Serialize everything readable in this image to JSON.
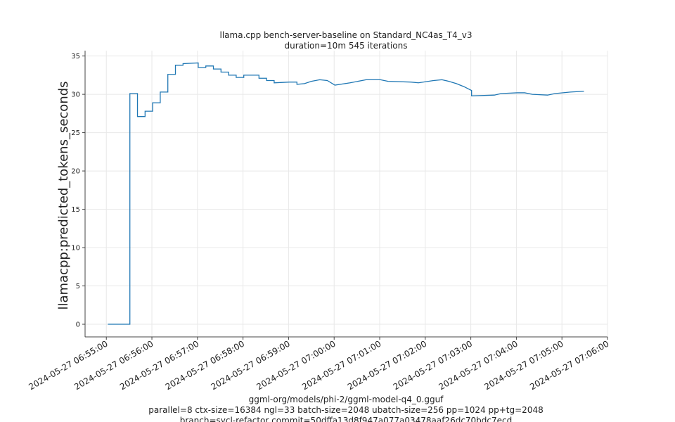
{
  "chart_data": {
    "type": "line",
    "title": "llama.cpp bench-server-baseline on Standard_NC4as_T4_v3",
    "subtitle": "duration=10m 545 iterations",
    "y_label": "llamacpp:predicted_tokens_seconds",
    "footer": [
      "ggml-org/models/phi-2/ggml-model-q4_0.gguf",
      "parallel=8 ctx-size=16384 ngl=33 batch-size=2048 ubatch-size=256 pp=1024 pp+tg=2048",
      "branch=sycl-refactor commit=50dffa13d8f947a077a03478aaf26dc70bdc7ecd"
    ],
    "grid": true,
    "xlim": [
      "2024-05-27 06:54:32",
      "2024-05-27 07:06:00"
    ],
    "xticks": [
      "2024-05-27 06:55:00",
      "2024-05-27 06:56:00",
      "2024-05-27 06:57:00",
      "2024-05-27 06:58:00",
      "2024-05-27 06:59:00",
      "2024-05-27 07:00:00",
      "2024-05-27 07:01:00",
      "2024-05-27 07:02:00",
      "2024-05-27 07:03:00",
      "2024-05-27 07:04:00",
      "2024-05-27 07:05:00",
      "2024-05-27 07:06:00"
    ],
    "ylim": [
      -1.65,
      35.7
    ],
    "yticks": [
      0,
      5,
      10,
      15,
      20,
      25,
      30,
      35
    ],
    "x": [
      "2024-05-27 06:55:02",
      "2024-05-27 06:55:31",
      "2024-05-27 06:55:31",
      "2024-05-27 06:55:41",
      "2024-05-27 06:55:41",
      "2024-05-27 06:55:51",
      "2024-05-27 06:55:51",
      "2024-05-27 06:56:01",
      "2024-05-27 06:56:01",
      "2024-05-27 06:56:11",
      "2024-05-27 06:56:11",
      "2024-05-27 06:56:21",
      "2024-05-27 06:56:21",
      "2024-05-27 06:56:31",
      "2024-05-27 06:56:31",
      "2024-05-27 06:56:41",
      "2024-05-27 06:56:41",
      "2024-05-27 06:57:01",
      "2024-05-27 06:57:01",
      "2024-05-27 06:57:11",
      "2024-05-27 06:57:11",
      "2024-05-27 06:57:21",
      "2024-05-27 06:57:21",
      "2024-05-27 06:57:31",
      "2024-05-27 06:57:31",
      "2024-05-27 06:57:41",
      "2024-05-27 06:57:41",
      "2024-05-27 06:57:51",
      "2024-05-27 06:57:51",
      "2024-05-27 06:58:01",
      "2024-05-27 06:58:01",
      "2024-05-27 06:58:21",
      "2024-05-27 06:58:21",
      "2024-05-27 06:58:31",
      "2024-05-27 06:58:31",
      "2024-05-27 06:58:41",
      "2024-05-27 06:58:41",
      "2024-05-27 06:59:01",
      "2024-05-27 06:59:11",
      "2024-05-27 06:59:11",
      "2024-05-27 06:59:21",
      "2024-05-27 06:59:30",
      "2024-05-27 06:59:41",
      "2024-05-27 06:59:51",
      "2024-05-27 07:00:01",
      "2024-05-27 07:00:21",
      "2024-05-27 07:00:42",
      "2024-05-27 07:01:01",
      "2024-05-27 07:01:11",
      "2024-05-27 07:01:41",
      "2024-05-27 07:01:51",
      "2024-05-27 07:02:11",
      "2024-05-27 07:02:22",
      "2024-05-27 07:02:31",
      "2024-05-27 07:02:41",
      "2024-05-27 07:02:51",
      "2024-05-27 07:03:01",
      "2024-05-27 07:03:01",
      "2024-05-27 07:03:31",
      "2024-05-27 07:03:40",
      "2024-05-27 07:04:01",
      "2024-05-27 07:04:11",
      "2024-05-27 07:04:21",
      "2024-05-27 07:04:41",
      "2024-05-27 07:04:51",
      "2024-05-27 07:05:11",
      "2024-05-27 07:05:29"
    ],
    "series": [
      {
        "name": "llamacpp:predicted_tokens_seconds",
        "color": "#1f77b4",
        "values": [
          0,
          0,
          30.1,
          30.1,
          27.1,
          27.1,
          27.8,
          27.8,
          28.9,
          28.9,
          30.3,
          30.3,
          32.6,
          32.6,
          33.8,
          33.8,
          34.0,
          34.1,
          33.5,
          33.5,
          33.7,
          33.7,
          33.3,
          33.3,
          32.9,
          32.9,
          32.5,
          32.5,
          32.2,
          32.2,
          32.5,
          32.5,
          32.1,
          32.1,
          31.8,
          31.8,
          31.5,
          31.6,
          31.6,
          31.3,
          31.4,
          31.7,
          31.9,
          31.8,
          31.2,
          31.5,
          31.9,
          31.9,
          31.7,
          31.6,
          31.5,
          31.8,
          31.9,
          31.7,
          31.4,
          31.0,
          30.5,
          29.8,
          29.9,
          30.1,
          30.2,
          30.2,
          30.0,
          29.9,
          30.1,
          30.3,
          30.4
        ]
      }
    ]
  }
}
